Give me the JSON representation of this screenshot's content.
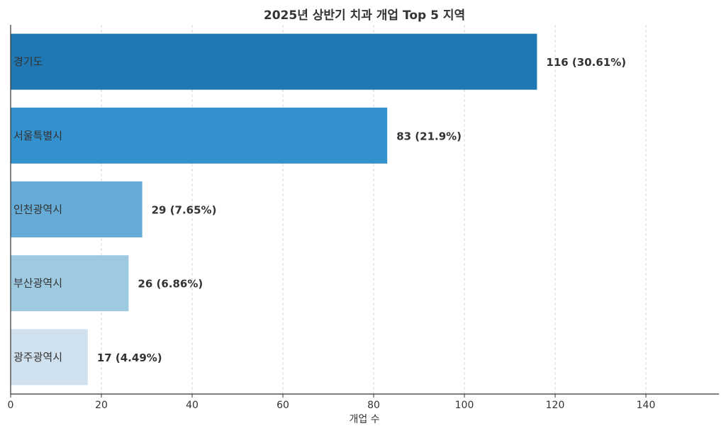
{
  "chart_data": {
    "type": "bar",
    "orientation": "horizontal",
    "title": "2025년 상반기 치과 개업 Top 5 지역",
    "xlabel": "개업 수",
    "ylabel": "",
    "categories": [
      "경기도",
      "서울특별시",
      "인천광역시",
      "부산광역시",
      "광주광역시"
    ],
    "values": [
      116,
      83,
      29,
      26,
      17
    ],
    "value_labels": [
      "116 (30.61%)",
      "83 (21.9%)",
      "29 (7.65%)",
      "26 (6.86%)",
      "17 (4.49%)"
    ],
    "colors": [
      "#1f77b4",
      "#3391cd",
      "#66abd6",
      "#9ecae1",
      "#cfe1ee"
    ],
    "xlim": [
      0,
      156
    ],
    "xticks": [
      0,
      20,
      40,
      60,
      80,
      100,
      120,
      140
    ],
    "grid": "vertical-dashed",
    "legend": "none"
  }
}
